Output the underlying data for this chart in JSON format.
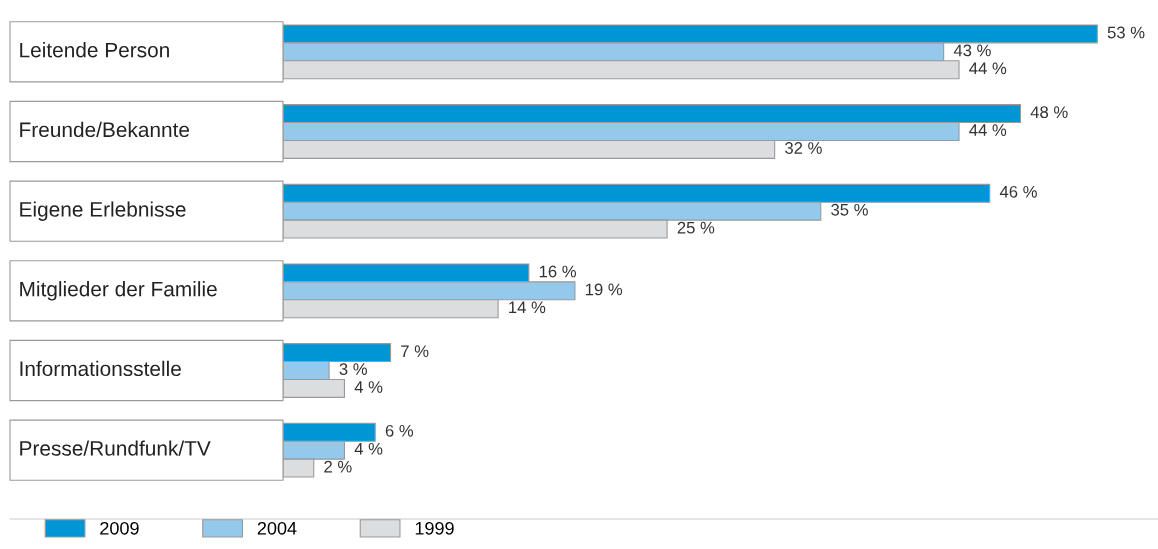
{
  "chart_data": {
    "type": "bar",
    "orientation": "horizontal",
    "categories": [
      "Leitende Person",
      "Freunde/Bekannte",
      "Eigene Erlebnisse",
      "Mitglieder der Familie",
      "Informationsstelle",
      "Presse/Rundfunk/TV"
    ],
    "series": [
      {
        "name": "2009",
        "color": "#0096d6",
        "values": [
          53,
          48,
          46,
          16,
          7,
          6
        ],
        "value_labels": [
          "53 %",
          "48 %",
          "46 %",
          "16 %",
          "7 %",
          "6 %"
        ]
      },
      {
        "name": "2004",
        "color": "#94c9eb",
        "values": [
          43,
          44,
          35,
          19,
          3,
          4
        ],
        "value_labels": [
          "43 %",
          "44 %",
          "35 %",
          "19 %",
          "3 %",
          "4 %"
        ]
      },
      {
        "name": "1999",
        "color": "#dcdddf",
        "values": [
          44,
          32,
          25,
          14,
          4,
          2
        ],
        "value_labels": [
          "44 %",
          "32 %",
          "25 %",
          "14 %",
          "4 %",
          "2 %"
        ]
      }
    ],
    "legend": "bottom left",
    "tick_labels": false
  }
}
